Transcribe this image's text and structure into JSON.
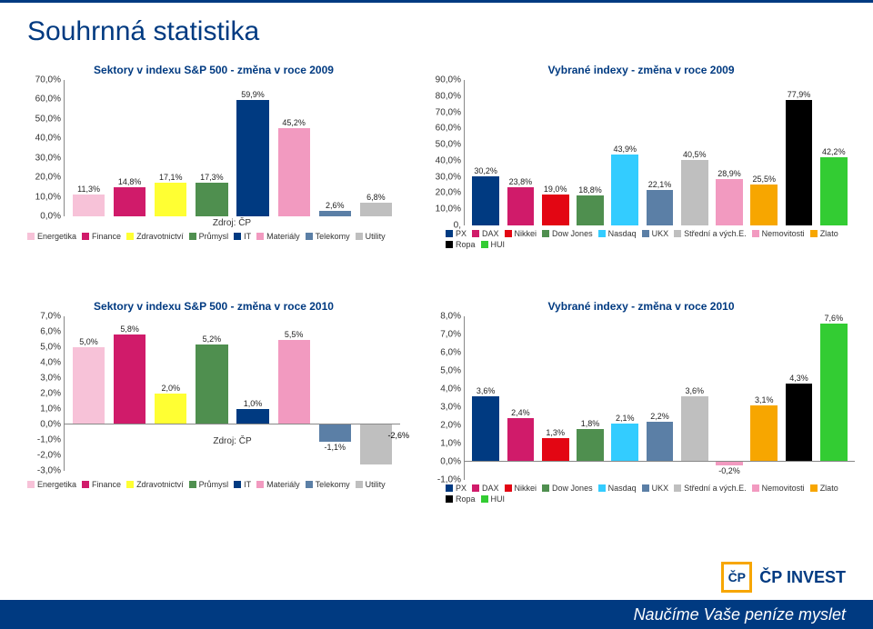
{
  "page": {
    "title": "Souhrnná statistika",
    "footer": "Naučíme Vaše peníze myslet",
    "logo_text": "ČP INVEST",
    "logo_mark": "ČP",
    "logo_color": "#003a81",
    "accent_color": "#f7a600"
  },
  "charts": {
    "sp2009": {
      "title": "Sektory v indexu S&P 500 - změna v roce 2009",
      "source": "Zdroj: ČP",
      "ylim": [
        0,
        70
      ],
      "ytick_step": 10,
      "ytick_suffix": ",0%",
      "series": [
        {
          "name": "Energetika",
          "value": 11.3,
          "label": "11,3%",
          "color": "#f7c2d8"
        },
        {
          "name": "Finance",
          "value": 14.8,
          "label": "14,8%",
          "color": "#d01b6a"
        },
        {
          "name": "Zdravotnictví",
          "value": 17.1,
          "label": "17,1%",
          "color": "#ffff33"
        },
        {
          "name": "Průmysl",
          "value": 17.3,
          "label": "17,3%",
          "color": "#4f8f4f"
        },
        {
          "name": "IT",
          "value": 59.9,
          "label": "59,9%",
          "color": "#003a81"
        },
        {
          "name": "Materiály",
          "value": 45.2,
          "label": "45,2%",
          "color": "#f29ac0"
        },
        {
          "name": "Telekomy",
          "value": 2.6,
          "label": "2,6%",
          "color": "#5b7fa6"
        },
        {
          "name": "Utility",
          "value": 6.8,
          "label": "6,8%",
          "color": "#bfbfbf"
        }
      ]
    },
    "idx2009": {
      "title": "Vybrané indexy - změna v roce 2009",
      "ylim": [
        0,
        90
      ],
      "ytick_step": 10,
      "ytick_suffix": ",0%",
      "ybottom_label": "0,",
      "series": [
        {
          "name": "PX",
          "value": 30.2,
          "label": "30,2%",
          "color": "#003a81"
        },
        {
          "name": "DAX",
          "value": 23.8,
          "label": "23,8%",
          "color": "#d01b6a"
        },
        {
          "name": "Nikkei",
          "value": 19.0,
          "label": "19,0%",
          "color": "#e30613"
        },
        {
          "name": "Dow Jones",
          "value": 18.8,
          "label": "18,8%",
          "color": "#4f8f4f"
        },
        {
          "name": "Nasdaq",
          "value": 43.9,
          "label": "43,9%",
          "color": "#33ccff"
        },
        {
          "name": "UKX",
          "value": 22.1,
          "label": "22,1%",
          "color": "#5b7fa6"
        },
        {
          "name": "Střední a vých.E.",
          "value": 40.5,
          "label": "40,5%",
          "color": "#bfbfbf"
        },
        {
          "name": "Nemovitosti",
          "value": 28.9,
          "label": "28,9%",
          "color": "#f29ac0"
        },
        {
          "name": "Zlato",
          "value": 25.5,
          "label": "25,5%",
          "color": "#f7a600"
        },
        {
          "name": "Ropa",
          "value": 77.9,
          "label": "77,9%",
          "color": "#000000"
        },
        {
          "name": "HUI",
          "value": 42.2,
          "label": "42,2%",
          "color": "#33cc33"
        }
      ]
    },
    "sp2010": {
      "title": "Sektory v indexu S&P 500 - změna v roce 2010",
      "source": "Zdroj: ČP",
      "ylim": [
        -3,
        7
      ],
      "ytick_step": 1,
      "ytick_suffix": ",0%",
      "extra_tail_label": "-2,6%",
      "series": [
        {
          "name": "Energetika",
          "value": 5.0,
          "label": "5,0%",
          "color": "#f7c2d8"
        },
        {
          "name": "Finance",
          "value": 5.8,
          "label": "5,8%",
          "color": "#d01b6a"
        },
        {
          "name": "Zdravotnictví",
          "value": 2.0,
          "label": "2,0%",
          "color": "#ffff33"
        },
        {
          "name": "Průmysl",
          "value": 5.2,
          "label": "5,2%",
          "color": "#4f8f4f"
        },
        {
          "name": "IT",
          "value": 1.0,
          "label": "1,0%",
          "color": "#003a81"
        },
        {
          "name": "Materiály",
          "value": 5.5,
          "label": "5,5%",
          "color": "#f29ac0"
        },
        {
          "name": "Telekomy",
          "value": -1.1,
          "label": "-1,1%",
          "color": "#5b7fa6"
        },
        {
          "name": "Utility",
          "value": -2.6,
          "label": "",
          "color": "#bfbfbf"
        }
      ]
    },
    "idx2010": {
      "title": "Vybrané indexy - změna v roce 2010",
      "ylim": [
        -1,
        8
      ],
      "ytick_step": 1,
      "ytick_suffix": ",0%",
      "ybottom_label": "-1,0%",
      "series": [
        {
          "name": "PX",
          "value": 3.6,
          "label": "3,6%",
          "color": "#003a81"
        },
        {
          "name": "DAX",
          "value": 2.4,
          "label": "2,4%",
          "color": "#d01b6a"
        },
        {
          "name": "Nikkei",
          "value": 1.3,
          "label": "1,3%",
          "color": "#e30613"
        },
        {
          "name": "Dow Jones",
          "value": 1.8,
          "label": "1,8%",
          "color": "#4f8f4f"
        },
        {
          "name": "Nasdaq",
          "value": 2.1,
          "label": "2,1%",
          "color": "#33ccff"
        },
        {
          "name": "UKX",
          "value": 2.2,
          "label": "2,2%",
          "color": "#5b7fa6"
        },
        {
          "name": "Střední a vých.E.",
          "value": 3.6,
          "label": "3,6%",
          "color": "#bfbfbf"
        },
        {
          "name": "Nemovitosti",
          "value": -0.2,
          "label": "-0,2%",
          "color": "#f29ac0"
        },
        {
          "name": "Zlato",
          "value": 3.1,
          "label": "3,1%",
          "color": "#f7a600"
        },
        {
          "name": "Ropa",
          "value": 4.3,
          "label": "4,3%",
          "color": "#000000"
        },
        {
          "name": "HUI",
          "value": 7.6,
          "label": "7,6%",
          "color": "#33cc33"
        }
      ]
    }
  }
}
